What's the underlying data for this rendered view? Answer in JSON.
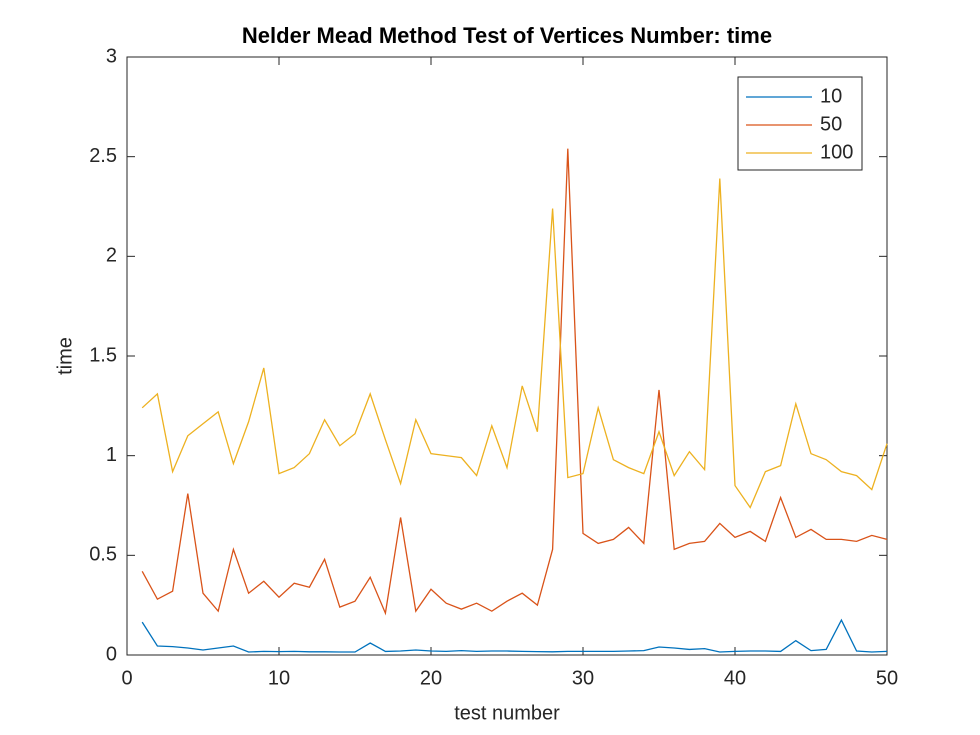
{
  "chart_data": {
    "type": "line",
    "title": "Nelder Mead Method Test of Vertices Number: time",
    "x_label": "test number",
    "y_label": "time",
    "x": [
      1,
      2,
      3,
      4,
      5,
      6,
      7,
      8,
      9,
      10,
      11,
      12,
      13,
      14,
      15,
      16,
      17,
      18,
      19,
      20,
      21,
      22,
      23,
      24,
      25,
      26,
      27,
      28,
      29,
      30,
      31,
      32,
      33,
      34,
      35,
      36,
      37,
      38,
      39,
      40,
      41,
      42,
      43,
      44,
      45,
      46,
      47,
      48,
      49,
      50
    ],
    "series": [
      {
        "name": "10",
        "color": "#0072bd",
        "values": [
          0.165,
          0.045,
          0.042,
          0.035,
          0.025,
          0.035,
          0.045,
          0.015,
          0.018,
          0.017,
          0.018,
          0.016,
          0.016,
          0.015,
          0.015,
          0.06,
          0.018,
          0.02,
          0.025,
          0.02,
          0.018,
          0.022,
          0.018,
          0.02,
          0.02,
          0.018,
          0.017,
          0.016,
          0.018,
          0.018,
          0.018,
          0.018,
          0.02,
          0.022,
          0.04,
          0.035,
          0.028,
          0.032,
          0.015,
          0.018,
          0.02,
          0.02,
          0.018,
          0.072,
          0.022,
          0.028,
          0.175,
          0.02,
          0.015,
          0.018
        ]
      },
      {
        "name": "50",
        "color": "#d95319",
        "values": [
          0.42,
          0.28,
          0.32,
          0.81,
          0.31,
          0.22,
          0.53,
          0.31,
          0.37,
          0.29,
          0.36,
          0.34,
          0.48,
          0.24,
          0.27,
          0.39,
          0.21,
          0.69,
          0.22,
          0.33,
          0.26,
          0.23,
          0.26,
          0.22,
          0.27,
          0.31,
          0.25,
          0.53,
          2.54,
          0.61,
          0.56,
          0.58,
          0.64,
          0.56,
          1.33,
          0.53,
          0.56,
          0.57,
          0.66,
          0.59,
          0.62,
          0.57,
          0.79,
          0.59,
          0.63,
          0.58,
          0.58,
          0.57,
          0.6,
          0.58
        ]
      },
      {
        "name": "100",
        "color": "#edb120",
        "values": [
          1.24,
          1.31,
          0.92,
          1.1,
          1.16,
          1.22,
          0.96,
          1.17,
          1.44,
          0.91,
          0.94,
          1.01,
          1.18,
          1.05,
          1.11,
          1.31,
          1.08,
          0.86,
          1.18,
          1.01,
          1.0,
          0.99,
          0.9,
          1.15,
          0.94,
          1.35,
          1.12,
          2.24,
          0.89,
          0.91,
          1.24,
          0.98,
          0.94,
          0.91,
          1.12,
          0.9,
          1.02,
          0.93,
          2.39,
          0.85,
          0.74,
          0.92,
          0.95,
          1.26,
          1.01,
          0.98,
          0.92,
          0.9,
          0.83,
          1.06
        ]
      }
    ],
    "xlim": [
      0,
      50
    ],
    "xticks": [
      0,
      10,
      20,
      30,
      40,
      50
    ],
    "ylim": [
      0,
      3
    ],
    "yticks": [
      0,
      0.5,
      1,
      1.5,
      2,
      2.5,
      3
    ],
    "grid": false,
    "legend": "northeast"
  }
}
